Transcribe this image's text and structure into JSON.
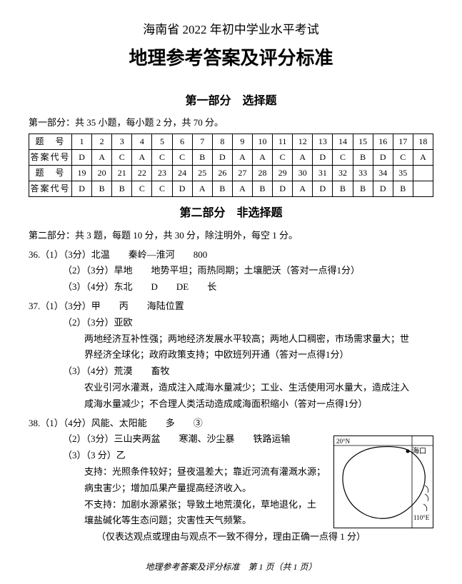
{
  "doc": {
    "title1": "海南省 2022 年初中学业水平考试",
    "title2": "地理参考答案及评分标准",
    "section1_title": "第一部分　选择题",
    "part1_desc": "第一部分：共 35 小题，每小题 2 分，共 70 分。",
    "section2_title": "第二部分　非选择题",
    "part2_desc": "第二部分：共 3 题，每题 10 分，共 30 分，除注明外，每空 1 分。",
    "footer": "地理参考答案及评分标准　第 1 页（共 1 页）"
  },
  "table": {
    "row_label_q": "题　号",
    "row_label_a": "答案代号",
    "qnums1": [
      "1",
      "2",
      "3",
      "4",
      "5",
      "6",
      "7",
      "8",
      "9",
      "10",
      "11",
      "12",
      "13",
      "14",
      "15",
      "16",
      "17",
      "18"
    ],
    "ans1": [
      "D",
      "A",
      "C",
      "A",
      "C",
      "C",
      "B",
      "D",
      "A",
      "A",
      "C",
      "A",
      "D",
      "C",
      "B",
      "D",
      "C",
      "A"
    ],
    "qnums2": [
      "19",
      "20",
      "21",
      "22",
      "23",
      "24",
      "25",
      "26",
      "27",
      "28",
      "29",
      "30",
      "31",
      "32",
      "33",
      "34",
      "35",
      ""
    ],
    "ans2": [
      "D",
      "B",
      "B",
      "C",
      "C",
      "D",
      "A",
      "B",
      "A",
      "B",
      "D",
      "A",
      "D",
      "B",
      "B",
      "D",
      "B",
      ""
    ]
  },
  "q36": {
    "l1": "36.（1）（3分）北温　　秦岭—淮河　　800",
    "l2": "（2）（3分）旱地　　地势平坦；雨热同期；土壤肥沃（答对一点得1分）",
    "l3": "（3）（4分）东北　　D　　DE　　长"
  },
  "q37": {
    "l1": "37.（1）（3分）甲　　丙　　海陆位置",
    "l2": "（2）（3分）亚欧",
    "l3": "两地经济互补性强；两地经济发展水平较高；两地人口稠密，市场需求量大；世",
    "l4": "界经济全球化；政府政策支持；中欧班列开通（答对一点得1分）",
    "l5": "（3）（4分）荒漠　　畜牧",
    "l6": "农业引河水灌溉，造成注入咸海水量减少；工业、生活使用河水量大，造成注入",
    "l7": "咸海水量减少；不合理人类活动造成咸海面积缩小（答对一点得1分）"
  },
  "q38": {
    "l1": "38.（1）（4分）风能、太阳能　　多　　③",
    "l2": "（2）（3分）三山夹两盆　　寒潮、沙尘暴　　铁路运输",
    "l3": "（3）（3 分）乙",
    "l4": "支持：光照条件较好；昼夜温差大；靠近河流有灌溉水源；",
    "l5": "病虫害少；增加瓜果产量提高经济收入。",
    "l6": "不支持：加剧水源紧张；导致土地荒漠化，草地退化，土",
    "l7": "壤盐碱化等生态问题；灾害性天气频繁。",
    "l8": "（仅表达观点或理由与观点不一致不得分，理由正确一点得 1 分）"
  },
  "map": {
    "border_color": "#000000",
    "lat_label": "20°N",
    "lon_label": "110°E",
    "city": "海口"
  }
}
